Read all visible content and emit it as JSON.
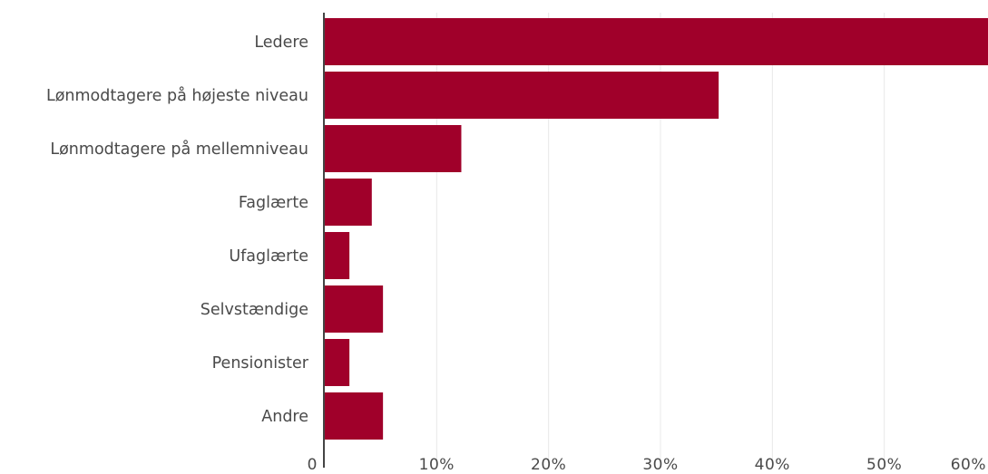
{
  "chart_data": {
    "type": "bar",
    "orientation": "horizontal",
    "categories": [
      "Ledere",
      "Lønmodtagere på højeste niveau",
      "Lønmodtagere på mellemniveau",
      "Faglærte",
      "Ufaglærte",
      "Selvstændige",
      "Pensionister",
      "Andre"
    ],
    "values": [
      59.5,
      35.2,
      12.2,
      4.2,
      2.2,
      5.2,
      2.2,
      5.2
    ],
    "x_ticks": [
      "0",
      "10%",
      "20%",
      "30%",
      "40%",
      "50%",
      "60%"
    ],
    "xlim": [
      0,
      60
    ],
    "grid": true,
    "bar_color": "#a0002a",
    "grid_color": "#e8e8e8",
    "axis_color": "#444444",
    "text_color": "#4a4a4a"
  }
}
